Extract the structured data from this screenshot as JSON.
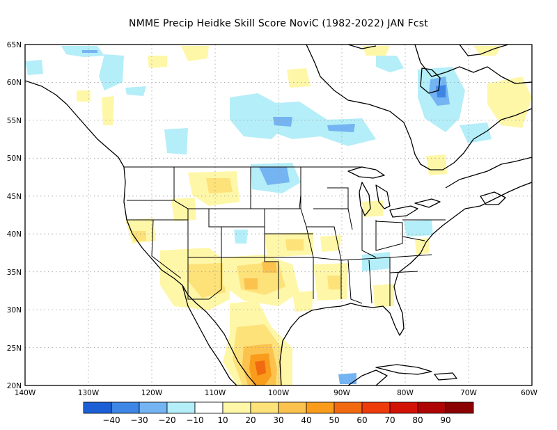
{
  "title": "NMME Precip Heidke Skill Score NoviC (1982-2022) JAN Fcst",
  "lat_labels": [
    "65N",
    "60N",
    "55N",
    "50N",
    "45N",
    "40N",
    "35N",
    "30N",
    "25N",
    "20N"
  ],
  "lon_labels": [
    "140W",
    "130W",
    "120W",
    "110W",
    "100W",
    "90W",
    "80W",
    "70W",
    "60W"
  ],
  "colorbar": {
    "colors": [
      "#1b5fd6",
      "#3d86e6",
      "#74b4f2",
      "#b4eef8",
      "#ffffff",
      "#fff7a8",
      "#fde27a",
      "#fcc24e",
      "#f99c1c",
      "#f26a10",
      "#ee3b0a",
      "#d31206",
      "#ae0404",
      "#8b0000"
    ],
    "labels": [
      "−40",
      "−30",
      "−20",
      "−10",
      "10",
      "20",
      "30",
      "40",
      "50",
      "60",
      "70",
      "80",
      "90"
    ]
  },
  "map_extent": {
    "lon": [
      -140,
      -60
    ],
    "lat": [
      20,
      65
    ]
  },
  "shading_notes": "Positive skill (yellow/orange) over southwest US, Texas, Mexico; negative skill (blue) over central Canada, Hudson Bay region, Labrador"
}
